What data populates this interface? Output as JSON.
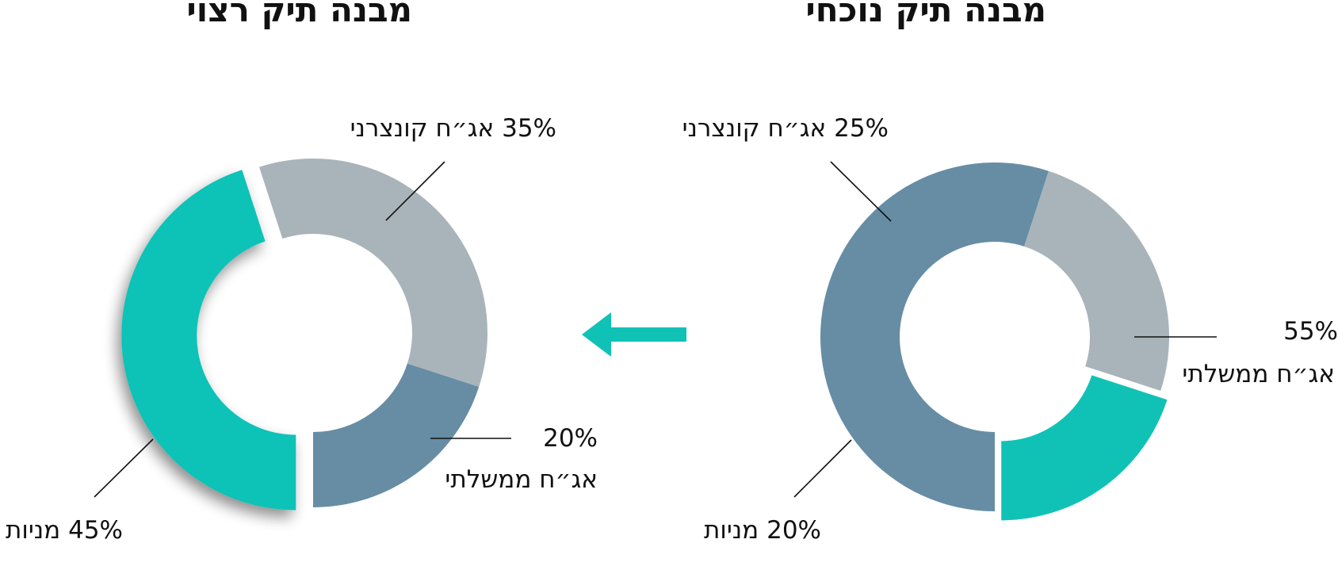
{
  "colors": {
    "government_bonds": "#668DA4",
    "corporate_bonds": "#A9B4BA",
    "stocks": "#10C2B6",
    "arrow": "#10C2B6",
    "leader": "#111111"
  },
  "arrow": {
    "direction": "left",
    "icon": "arrow-left-icon"
  },
  "chart_data": [
    {
      "type": "pie",
      "donut": true,
      "title": "מבנה תיק נוכחי",
      "slices": [
        {
          "label": "אג״ח ממשלתי",
          "value": 55,
          "color": "#668DA4",
          "exploded": false
        },
        {
          "label": "אג״ח קונצרני",
          "value": 25,
          "color": "#A9B4BA",
          "exploded": false
        },
        {
          "label": "מניות",
          "value": 20,
          "color": "#10C2B6",
          "exploded": true
        }
      ]
    },
    {
      "type": "pie",
      "donut": true,
      "title": "מבנה תיק רצוי",
      "slices": [
        {
          "label": "אג״ח ממשלתי",
          "value": 20,
          "color": "#668DA4",
          "exploded": false
        },
        {
          "label": "אג״ח קונצרני",
          "value": 35,
          "color": "#A9B4BA",
          "exploded": false
        },
        {
          "label": "מניות",
          "value": 45,
          "color": "#10C2B6",
          "exploded": true
        }
      ]
    }
  ],
  "labels": {
    "current": {
      "gov_pct": "55%",
      "gov_name": "אג״ח ממשלתי",
      "corp": "25% אג״ח קונצרני",
      "stocks": "20% מניות"
    },
    "target": {
      "gov_pct": "20%",
      "gov_name": "אג״ח ממשלתי",
      "corp": "35% אג״ח קונצרני",
      "stocks": "45% מניות"
    }
  }
}
